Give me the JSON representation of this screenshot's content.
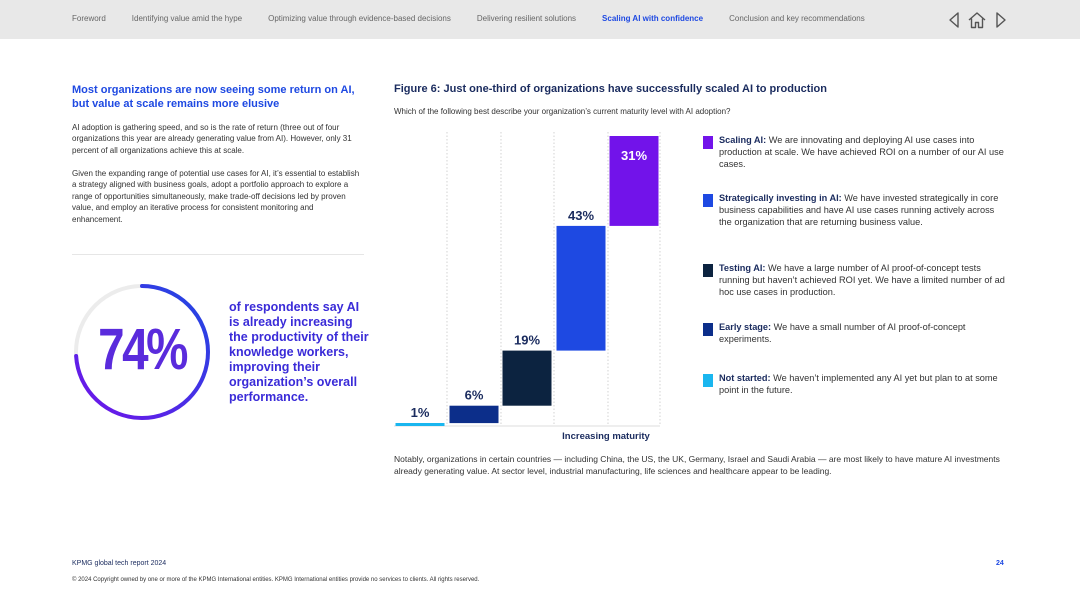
{
  "nav": {
    "items": [
      {
        "label": "Foreword",
        "active": false
      },
      {
        "label": "Identifying value amid the hype",
        "active": false
      },
      {
        "label": "Optimizing value through evidence-based decisions",
        "active": false
      },
      {
        "label": "Delivering resilient solutions",
        "active": false
      },
      {
        "label": "Scaling AI with confidence",
        "active": true
      },
      {
        "label": "Conclusion and key recommendations",
        "active": false
      }
    ],
    "icons": [
      "previous-page-icon",
      "home-icon",
      "next-page-icon"
    ]
  },
  "left": {
    "heading": "Most organizations are now seeing some return on AI, but value at scale remains more elusive",
    "para1": "AI adoption is gathering speed, and so is the rate of return (three out of four organizations this year are already generating value from AI). However, only 31 percent of all organizations achieve this at scale.",
    "para2": "Given the expanding range of potential use cases for AI, it’s essential to establish a strategy aligned with business goals, adopt a portfolio approach to explore a range of opportunities simultaneously, make trade-off decisions led by proven value, and employ an iterative process for consistent monitoring and enhancement.",
    "stat_value": "74%",
    "stat_fraction": 0.74,
    "stat_text": "of respondents say AI is already increasing the productivity of their knowledge workers, improving their organization’s overall performance."
  },
  "figure": {
    "title": "Figure 6: Just one-third of organizations have successfully scaled AI to production",
    "subtitle": "Which of the following best describe your organization’s current maturity level with AI adoption?"
  },
  "chart_data": {
    "type": "bar",
    "subtype": "waterfall",
    "title": "Figure 6: Just one-third of organizations have successfully scaled AI to production",
    "xlabel": "Increasing maturity",
    "ylabel": "",
    "ylim": [
      0,
      100
    ],
    "categories": [
      "Not started",
      "Early stage",
      "Testing AI",
      "Strategically investing in AI",
      "Scaling AI"
    ],
    "values": [
      1,
      6,
      19,
      43,
      31
    ],
    "labels": [
      "1%",
      "6%",
      "19%",
      "43%",
      "31%"
    ],
    "colors": [
      "#1ab6ef",
      "#0c2e8a",
      "#0c2340",
      "#1e49e2",
      "#7213ea"
    ],
    "label_colors": [
      "#1a2b5e",
      "#1a2b5e",
      "#1a2b5e",
      "#1a2b5e",
      "#ffffff"
    ],
    "grid": "vertical dotted"
  },
  "legend": [
    {
      "name": "Scaling AI:",
      "text": " We are innovating and deploying AI use cases into production at scale. We have achieved ROI on a number of our AI use cases.",
      "color": "#7213ea"
    },
    {
      "name": "Strategically investing in AI:",
      "text": " We have invested strategically in core business capabilities and have AI use cases running actively across the organization that are returning business value.",
      "color": "#1e49e2"
    },
    {
      "name": "Testing AI:",
      "text": " We have a large number of AI proof-of-concept tests running but haven’t achieved ROI yet. We have a limited number of ad hoc use cases in production.",
      "color": "#0c2340"
    },
    {
      "name": "Early stage:",
      "text": " We have a small number of AI proof-of-concept experiments.",
      "color": "#0c2e8a"
    },
    {
      "name": "Not started:",
      "text": " We haven’t implemented any AI yet but plan to at some point in the future.",
      "color": "#1ab6ef"
    }
  ],
  "note": "Notably, organizations in certain countries — including China, the US, the UK, Germany, Israel and Saudi Arabia — are most likely to have mature AI investments already generating value. At sector level, industrial manufacturing, life sciences and healthcare appear to be leading.",
  "footer": {
    "title": "KPMG global tech report 2024",
    "page": "24",
    "copyright": "© 2024 Copyright owned by one or more of the KPMG International entities. KPMG International entities provide no services to clients. All rights reserved."
  }
}
